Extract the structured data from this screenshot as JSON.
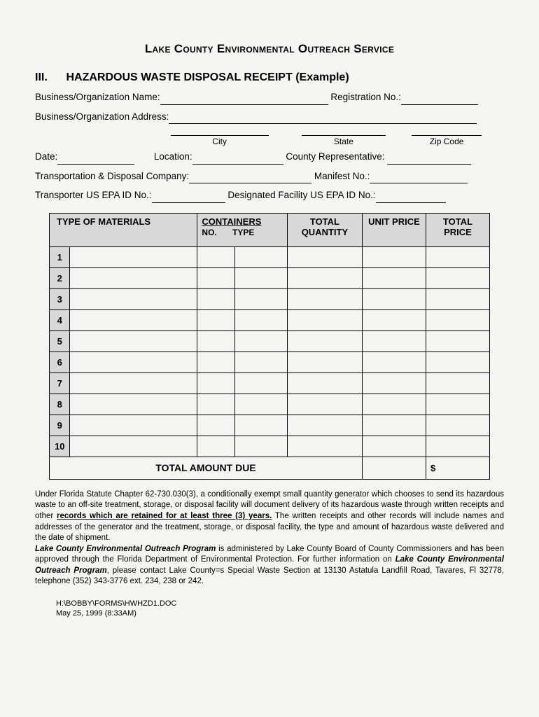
{
  "header": {
    "org_title": "Lake County Environmental Outreach Service",
    "section_num": "III.",
    "section_title": "HAZARDOUS WASTE DISPOSAL RECEIPT (Example)"
  },
  "fields": {
    "biz_name_label": "Business/Organization Name:",
    "reg_no_label": "Registration No.:",
    "biz_addr_label": "Business/Organization Address:",
    "city_label": "City",
    "state_label": "State",
    "zip_label": "Zip Code",
    "date_label": "Date:",
    "location_label": "Location:",
    "county_rep_label": "County Representative:",
    "transport_co_label": "Transportation & Disposal Company:",
    "manifest_label": "Manifest No.:",
    "transporter_epa_label": "Transporter US EPA ID No.:",
    "facility_epa_label": "Designated Facility US EPA ID No.:"
  },
  "table": {
    "headers": {
      "type": "TYPE OF MATERIALS",
      "containers": "CONTAINERS",
      "containers_no": "NO.",
      "containers_type": "TYPE",
      "qty": "TOTAL QUANTITY",
      "unit_price": "UNIT PRICE",
      "total_price": "TOTAL PRICE"
    },
    "row_count": 10,
    "total_label": "TOTAL AMOUNT DUE",
    "total_value": "$"
  },
  "legal": {
    "p1_a": "Under Florida Statute Chapter 62-730.030(3), a conditionally exempt small quantity generator which chooses to send its hazardous waste to an off-site treatment, storage, or disposal facility will document delivery of its hazardous waste through written receipts and other ",
    "p1_bu": "records which are retained for at least three (3) years.",
    "p1_b": " The written receipts and other records will include names and addresses of the generator and the treatment, storage, or disposal facility, the type and amount of hazardous waste delivered and the date of shipment.",
    "p2_a": "Lake County Environmental Outreach Program",
    "p2_b": " is administered by Lake County Board of County Commissioners and has been approved through the Florida Department of Environmental Protection. For further information on ",
    "p2_c": "Lake County Environmental Outreach Program",
    "p2_d": ", please contact Lake County=s Special Waste Section at 13130 Astatula Landfill Road, Tavares, Fl 32778, telephone (352) 343-3776 ext. 234, 238 or 242."
  },
  "footer": {
    "path": "H:\\BOBBY\\FORMS\\HWHZD1.DOC",
    "date": "May 25, 1999 (8:33AM)"
  }
}
